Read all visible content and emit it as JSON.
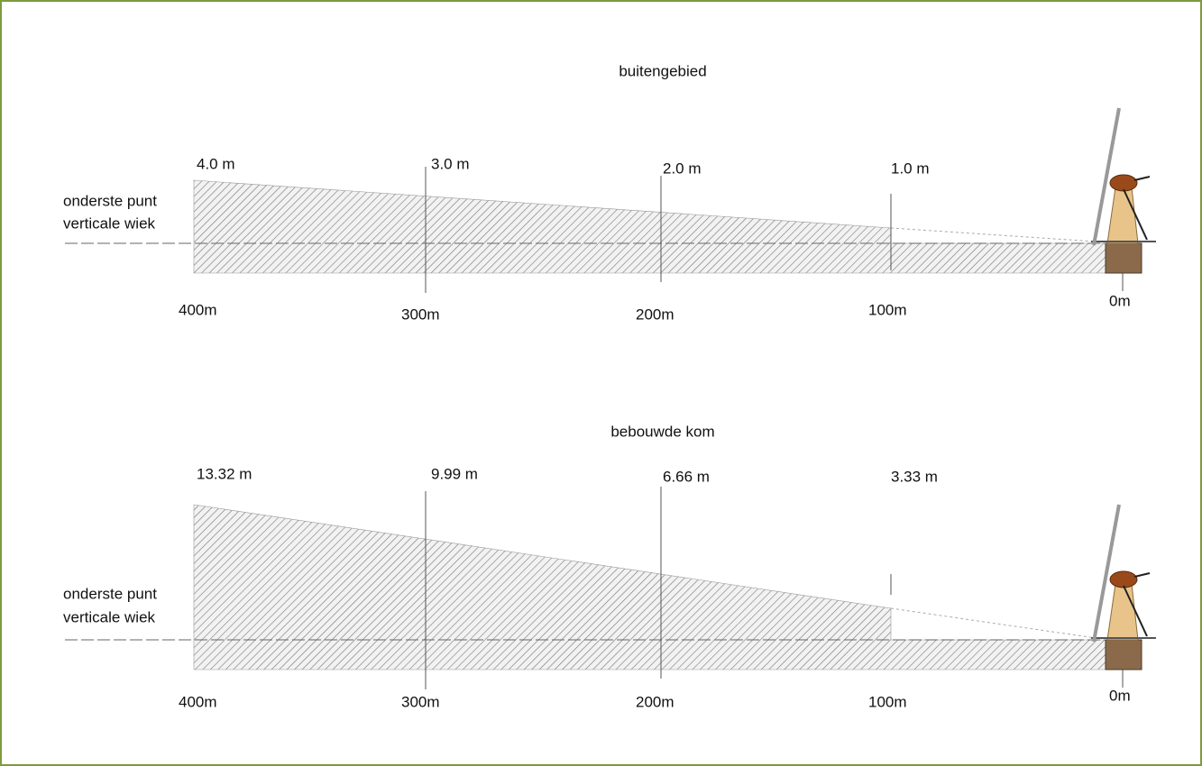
{
  "panels": [
    {
      "title": "buitengebied",
      "label_lines": [
        "onderste punt",
        "verticale wiek"
      ],
      "heights": [
        "4.0 m",
        "3.0 m",
        "2.0 m",
        "1.0 m"
      ],
      "distances": [
        "400m",
        "300m",
        "200m",
        "100m",
        "0m"
      ]
    },
    {
      "title": "bebouwde kom",
      "label_lines": [
        "onderste punt",
        "verticale wiek"
      ],
      "heights": [
        "13.32 m",
        "9.99 m",
        "6.66 m",
        "3.33 m"
      ],
      "distances": [
        "400m",
        "300m",
        "200m",
        "100m",
        "0m"
      ]
    }
  ]
}
